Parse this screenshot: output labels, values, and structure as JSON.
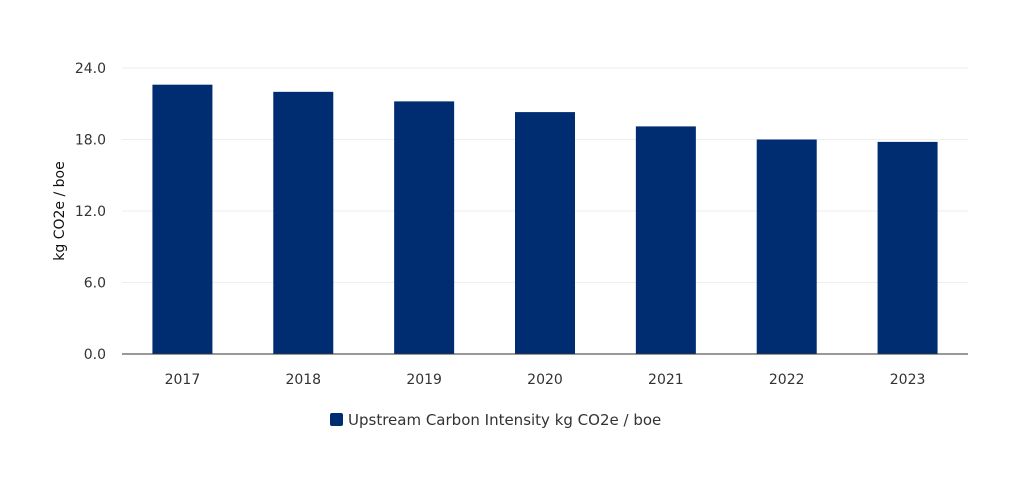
{
  "chart_data": {
    "type": "bar",
    "title": "",
    "xlabel": "",
    "ylabel": "kg CO2e / boe",
    "categories": [
      "2017",
      "2018",
      "2019",
      "2020",
      "2021",
      "2022",
      "2023"
    ],
    "series": [
      {
        "name": "Upstream Carbon Intensity kg CO2e / boe",
        "values": [
          22.6,
          22.0,
          21.2,
          20.3,
          19.1,
          18.0,
          17.8
        ],
        "color": "#002d72"
      }
    ],
    "ylim": [
      0,
      24
    ],
    "yticks": [
      "0.0",
      "6.0",
      "12.0",
      "18.0",
      "24.0"
    ],
    "grid": true,
    "legend_position": "bottom"
  }
}
